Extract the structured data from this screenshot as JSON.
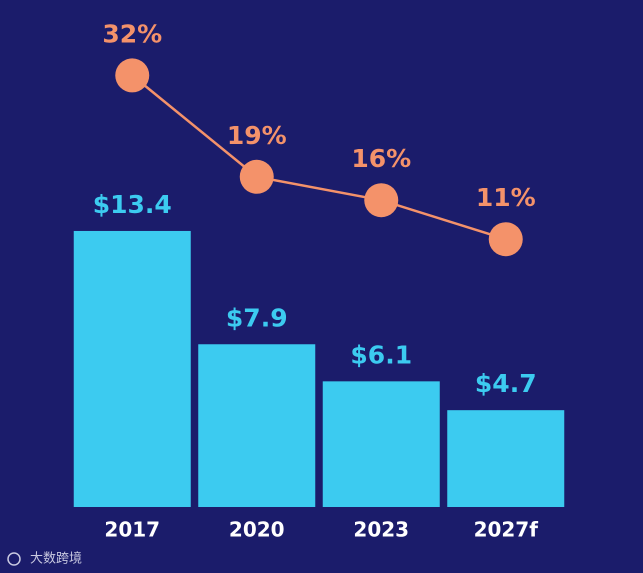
{
  "chart_data": {
    "type": "combo",
    "categories": [
      "2017",
      "2020",
      "2023",
      "2027f"
    ],
    "series": [
      {
        "type": "bar",
        "color": "#3ccbf0",
        "values": [
          13.4,
          7.9,
          6.1,
          4.7
        ],
        "value_labels": [
          "$13.4",
          "$7.9",
          "$6.1",
          "$4.7"
        ]
      },
      {
        "type": "line",
        "color": "#f4926a",
        "values": [
          32,
          19,
          16,
          11
        ],
        "value_labels": [
          "32%",
          "19%",
          "16%",
          "11%"
        ]
      }
    ],
    "watermark": "大数跨境"
  }
}
